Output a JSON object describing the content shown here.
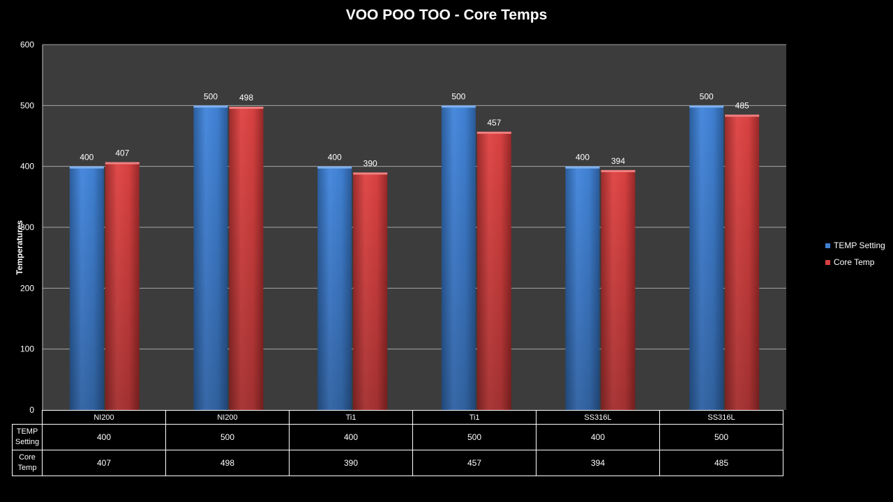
{
  "chart_data": {
    "type": "bar",
    "title": "VOO POO TOO - Core Temps",
    "xlabel": "",
    "ylabel": "Temperatures",
    "ylim": [
      0,
      600
    ],
    "yticks": [
      0,
      100,
      200,
      300,
      400,
      500,
      600
    ],
    "categories": [
      "NI200",
      "NI200",
      "Ti1",
      "Ti1",
      "SS316L",
      "SS316L"
    ],
    "series": [
      {
        "name": "TEMP Setting",
        "values": [
          400,
          500,
          400,
          500,
          400,
          500
        ],
        "color": "#3f7fd0"
      },
      {
        "name": "Core Temp",
        "values": [
          407,
          498,
          390,
          457,
          394,
          485
        ],
        "color": "#d64040"
      }
    ],
    "grid": true,
    "legend": "right",
    "data_table": true
  },
  "table_labels": {
    "row1": "TEMP Setting",
    "row2": "Core Temp"
  }
}
